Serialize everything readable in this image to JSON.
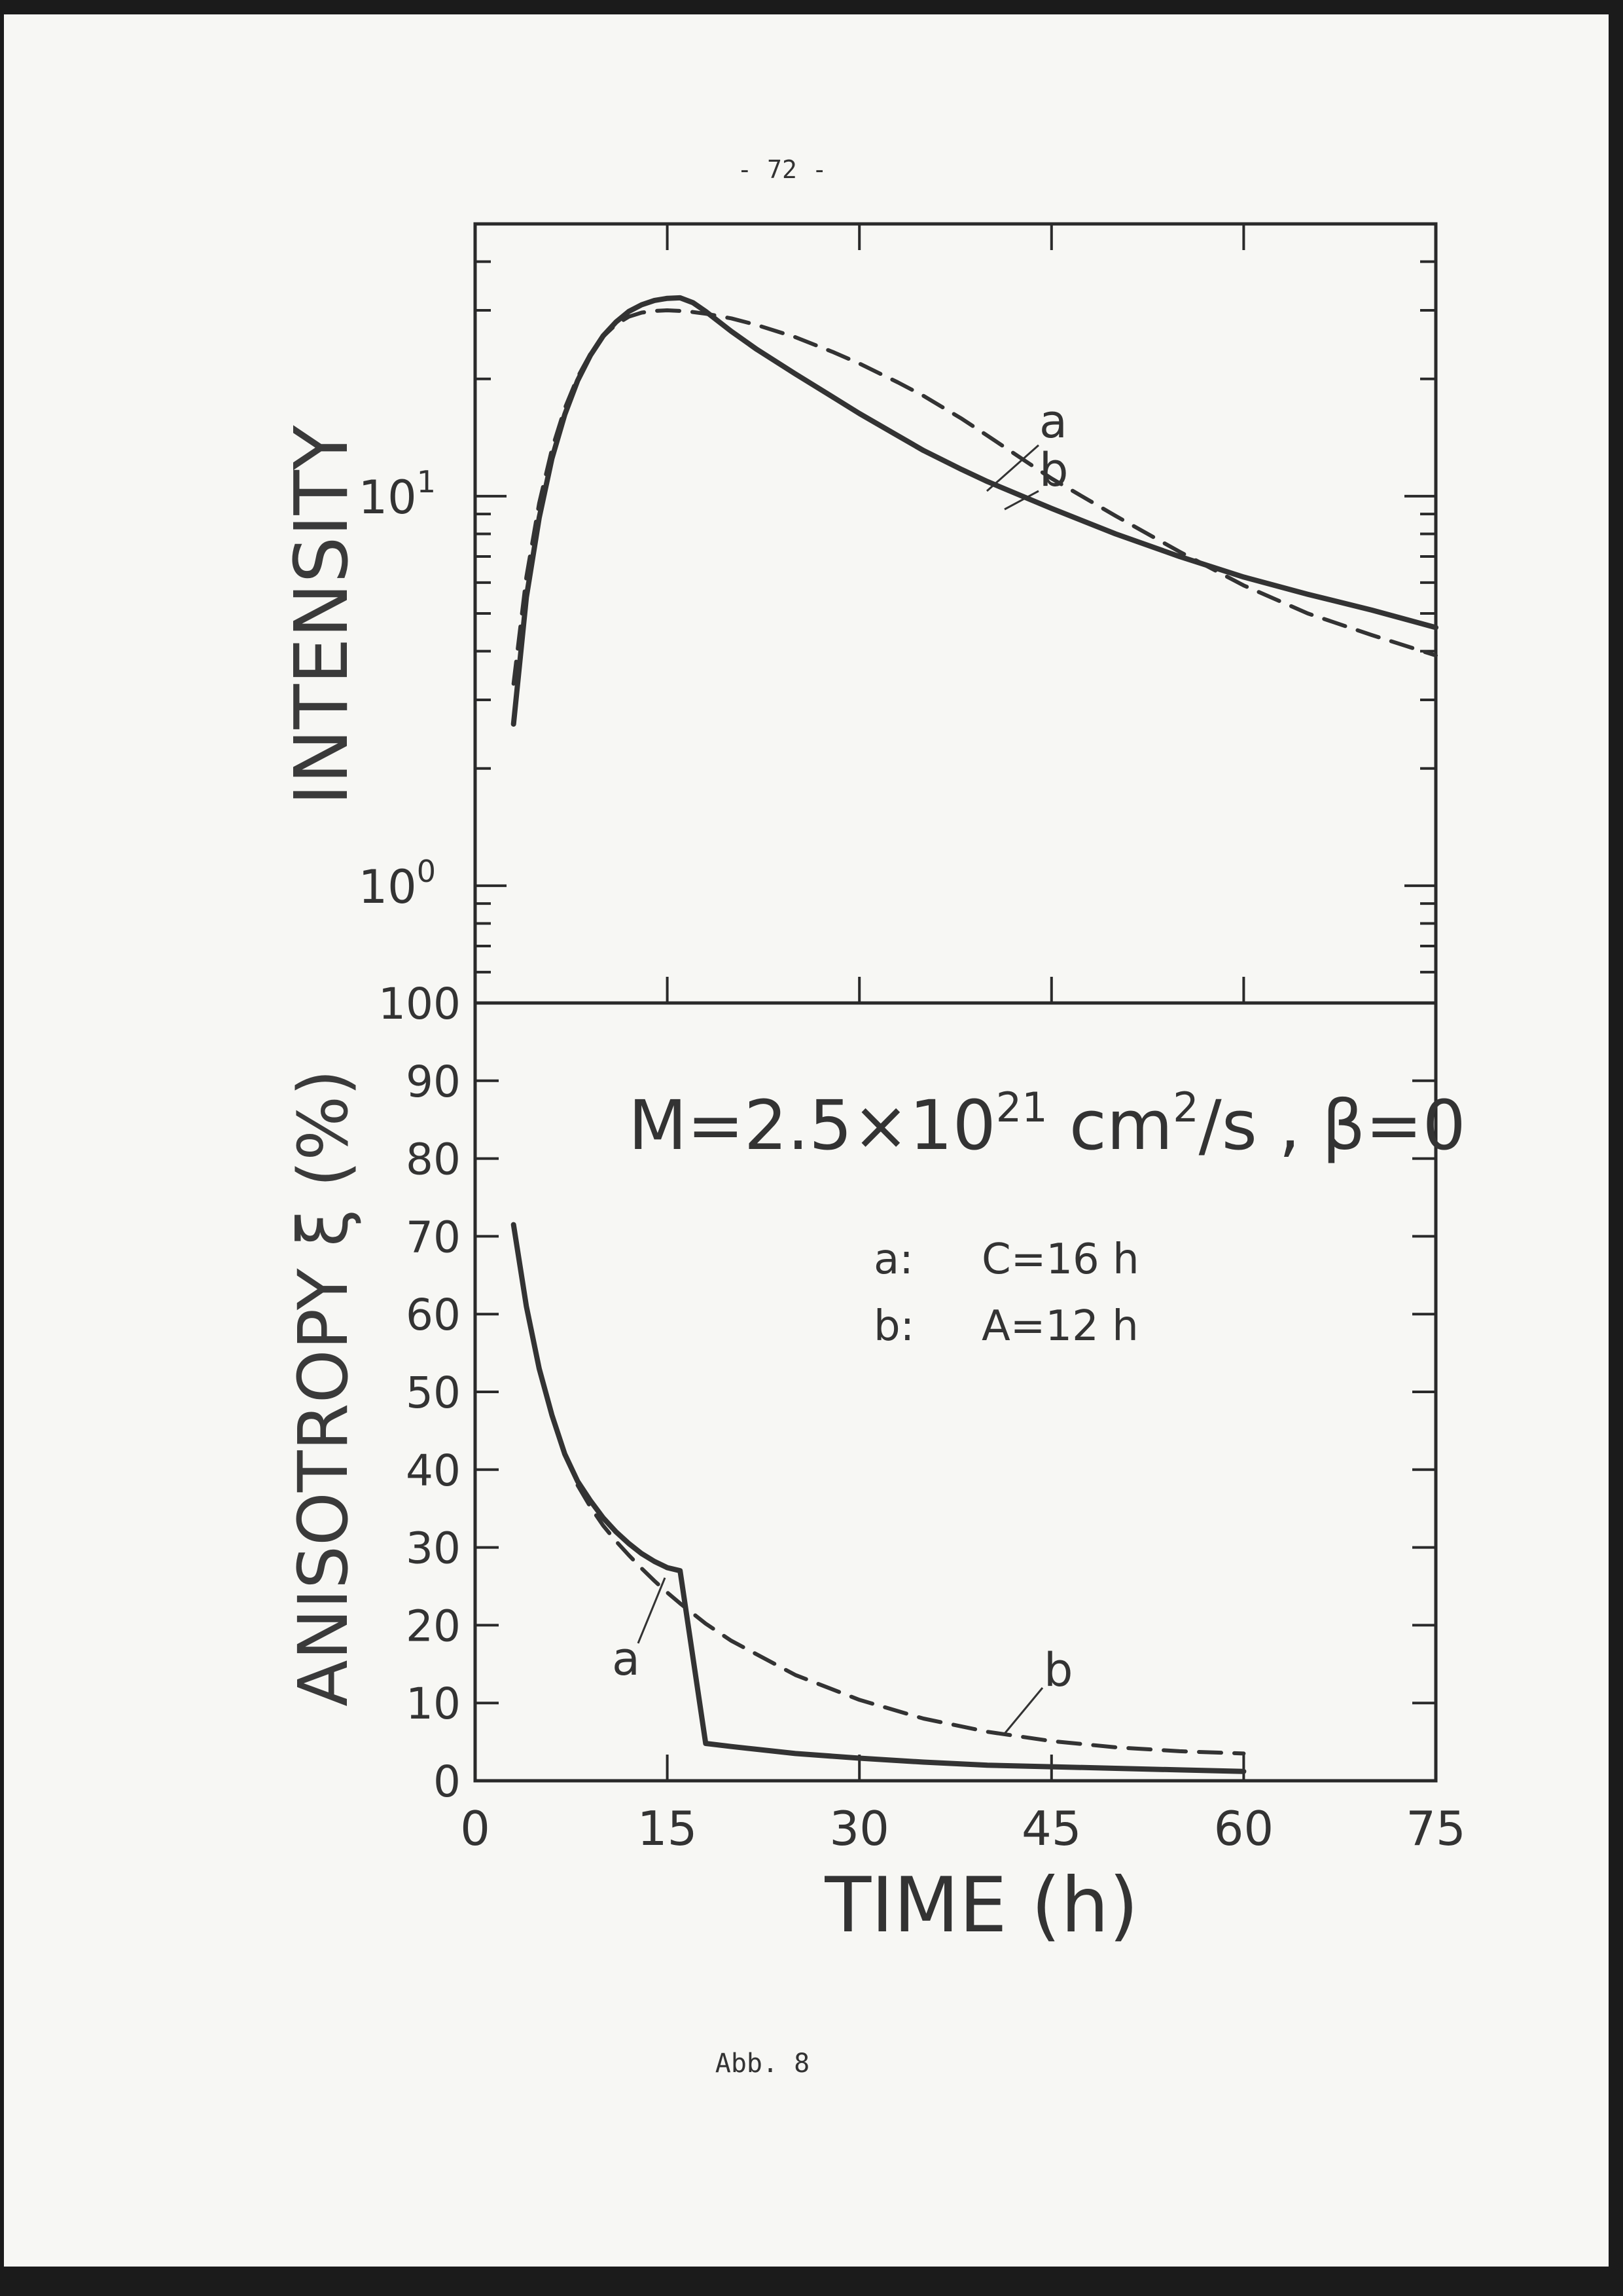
{
  "page": {
    "header": "- 72 -",
    "caption": "Abb. 8"
  },
  "chart_data": [
    {
      "type": "line",
      "panel": "top",
      "ylabel": "INTENSITY",
      "yscale": "log",
      "ylim": [
        0.5,
        50
      ],
      "xlim": [
        0,
        75
      ],
      "yticks": [
        {
          "value": 1,
          "label_base": "10",
          "label_exp": "0"
        },
        {
          "value": 10,
          "label_base": "10",
          "label_exp": "1"
        }
      ],
      "series": [
        {
          "name": "a",
          "style": "solid",
          "x": [
            3,
            4,
            5,
            6,
            7,
            8,
            9,
            10,
            11,
            12,
            13,
            14,
            15,
            16,
            17,
            18,
            20,
            22,
            25,
            28,
            30,
            33,
            35,
            38,
            40,
            45,
            50,
            55,
            60,
            65,
            70,
            75
          ],
          "y": [
            2.6,
            5.5,
            8.8,
            12.5,
            16.2,
            19.8,
            23,
            25.8,
            28,
            29.8,
            31,
            31.8,
            32.2,
            32.3,
            31.4,
            29.8,
            26.5,
            23.8,
            20.6,
            17.9,
            16.3,
            14.3,
            13.1,
            11.7,
            10.9,
            9.3,
            8.0,
            7.0,
            6.2,
            5.6,
            5.1,
            4.6
          ]
        },
        {
          "name": "b",
          "style": "dashed",
          "x": [
            3,
            4,
            5,
            6,
            7,
            8,
            9,
            10,
            11,
            12,
            13,
            14,
            15,
            16,
            17,
            18,
            20,
            22,
            25,
            28,
            30,
            33,
            35,
            38,
            40,
            45,
            50,
            55,
            60,
            65,
            70,
            75
          ],
          "y": [
            3.3,
            6.2,
            9.6,
            13.2,
            16.8,
            20.2,
            23.2,
            25.7,
            27.6,
            28.9,
            29.6,
            29.9,
            30.0,
            29.9,
            29.7,
            29.4,
            28.6,
            27.5,
            25.6,
            23.4,
            21.9,
            19.6,
            18.1,
            15.8,
            14.3,
            11.1,
            8.9,
            7.2,
            5.9,
            5.0,
            4.4,
            3.9
          ]
        }
      ]
    },
    {
      "type": "line",
      "panel": "bottom",
      "ylabel": "ANISOTROPY ξ (%)",
      "xlabel": "TIME (h)",
      "xlim": [
        0,
        75
      ],
      "ylim": [
        0,
        100
      ],
      "xticks": [
        0,
        15,
        30,
        45,
        60,
        75
      ],
      "yticks": [
        0,
        10,
        20,
        30,
        40,
        50,
        60,
        70,
        80,
        90,
        100
      ],
      "annotations": {
        "formula_main": "M=2.5×10",
        "formula_exp1": "21",
        "formula_unit": " cm",
        "formula_exp2": "2",
        "formula_tail": "/s , β=0",
        "legend_a_key": "a:",
        "legend_a_val": "C=16 h",
        "legend_b_key": "b:",
        "legend_b_val": "A=12 h"
      },
      "series": [
        {
          "name": "a",
          "style": "solid",
          "x": [
            3,
            4,
            5,
            6,
            7,
            8,
            9,
            10,
            11,
            12,
            13,
            14,
            15,
            16,
            18,
            20,
            25,
            30,
            35,
            40,
            45,
            50,
            55,
            60
          ],
          "y": [
            71.5,
            61,
            53,
            47,
            42,
            38.5,
            36,
            33.8,
            32,
            30.5,
            29.2,
            28.2,
            27.4,
            27,
            4.8,
            4.4,
            3.5,
            2.9,
            2.4,
            2.0,
            1.8,
            1.6,
            1.4,
            1.2
          ]
        },
        {
          "name": "b",
          "style": "dashed",
          "x": [
            8,
            9,
            10,
            11,
            12,
            13,
            14,
            15,
            16,
            18,
            20,
            25,
            30,
            35,
            40,
            45,
            50,
            55,
            60
          ],
          "y": [
            38,
            35.2,
            32.8,
            30.8,
            29,
            27.3,
            25.7,
            24.2,
            22.8,
            20.2,
            18,
            13.6,
            10.4,
            8.0,
            6.3,
            5.1,
            4.3,
            3.8,
            3.5
          ]
        }
      ]
    }
  ]
}
